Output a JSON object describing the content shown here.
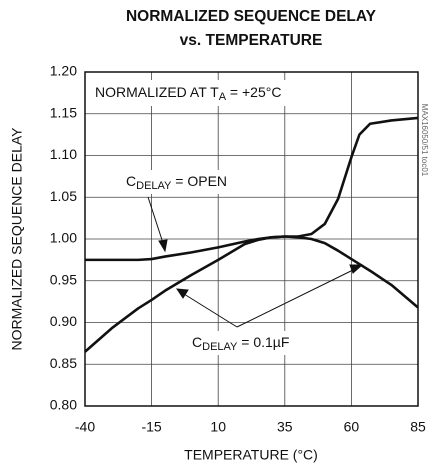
{
  "chart_data": {
    "type": "line",
    "title_lines": [
      "NORMALIZED SEQUENCE DELAY",
      "vs. TEMPERATURE"
    ],
    "x_label": "TEMPERATURE (°C)",
    "y_label": "NORMALIZED SEQUENCE DELAY",
    "x": [
      -40,
      -30,
      -20,
      -15,
      -10,
      0,
      10,
      20,
      25,
      30,
      35,
      40,
      45,
      50,
      55,
      58,
      60,
      63,
      67,
      75,
      85
    ],
    "series": [
      {
        "color": "#111111",
        "values": [
          0.975,
          0.975,
          0.975,
          0.976,
          0.979,
          0.984,
          0.99,
          0.997,
          1.0,
          1.002,
          1.003,
          1.003,
          1.006,
          1.018,
          1.048,
          1.078,
          1.098,
          1.125,
          1.138,
          1.142,
          1.145
        ]
      },
      {
        "color": "#111111",
        "values": [
          0.865,
          0.893,
          0.917,
          0.927,
          0.938,
          0.957,
          0.975,
          0.994,
          0.999,
          1.002,
          1.003,
          1.002,
          1.0,
          0.995,
          0.986,
          0.98,
          0.976,
          0.97,
          0.962,
          0.945,
          0.918
        ]
      }
    ],
    "xlim": [
      -40,
      85
    ],
    "xticks": [
      -40,
      -15,
      10,
      35,
      60,
      85
    ],
    "ylim": [
      0.8,
      1.2
    ],
    "yticks": [
      {
        "value": 0.8,
        "label": "0.80"
      },
      0.85,
      {
        "value": 0.9,
        "label": "0.90"
      },
      0.95,
      {
        "value": 1.0,
        "label": "1.00"
      },
      1.05,
      {
        "value": 1.1,
        "label": "1.10"
      },
      1.15,
      {
        "value": 1.2,
        "label": "1.20"
      }
    ],
    "grid": true,
    "annotations": {
      "normalized": {
        "text": "NORMALIZED AT T",
        "sub": "A",
        "after": " = +25°C"
      },
      "open": {
        "text": "C",
        "sub": "DELAY",
        "after": " = OPEN"
      },
      "cap": {
        "text": "C",
        "sub": "DELAY",
        "after": " = 0.1µF"
      },
      "watermark": "MAX16050/51 toc01"
    }
  }
}
